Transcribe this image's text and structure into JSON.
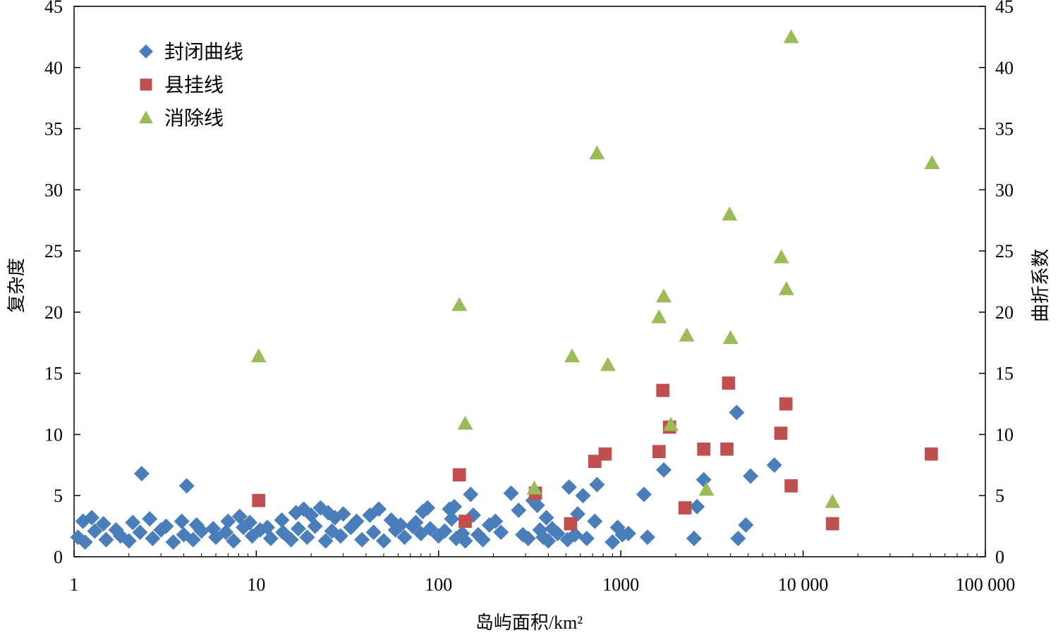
{
  "chart_data": {
    "type": "scatter",
    "xlabel": "岛屿面积/km²",
    "ylabel_left": "复杂度",
    "ylabel_right": "曲折系数",
    "x_scale": "log",
    "xlim": [
      1,
      100000
    ],
    "ylim_left": [
      0,
      45
    ],
    "ylim_right": [
      0,
      45
    ],
    "x_ticks": [
      1,
      10,
      100,
      1000,
      10000,
      100000
    ],
    "x_tick_labels": [
      "1",
      "10",
      "100",
      "1000",
      "10 000",
      "100 000"
    ],
    "y_ticks_left": [
      0,
      5,
      10,
      15,
      20,
      25,
      30,
      35,
      40,
      45
    ],
    "y_tick_labels_left": [
      "0",
      "5",
      "10",
      "15",
      "20",
      "25",
      "30",
      "35",
      "40",
      "45"
    ],
    "y_ticks_right": [
      0,
      5,
      10,
      15,
      20,
      25,
      30,
      35,
      40,
      45
    ],
    "y_tick_labels_right": [
      "0",
      "5",
      "10",
      "15",
      "20",
      "25",
      "30",
      "35",
      "40",
      "45"
    ],
    "grid": false,
    "legend_position": "top-left",
    "series": [
      {
        "name": "封闭曲线",
        "marker": "diamond",
        "color": "#4a7ebb",
        "points": [
          [
            2.35,
            6.8
          ],
          [
            4.15,
            5.8
          ],
          [
            1.12,
            2.9
          ],
          [
            1.25,
            3.2
          ],
          [
            1.45,
            2.7
          ],
          [
            1.7,
            2.2
          ],
          [
            2.1,
            2.8
          ],
          [
            2.6,
            3.1
          ],
          [
            3.2,
            2.5
          ],
          [
            3.9,
            2.9
          ],
          [
            4.7,
            2.6
          ],
          [
            5.8,
            2.3
          ],
          [
            7.0,
            2.9
          ],
          [
            8.1,
            3.3
          ],
          [
            9.2,
            2.8
          ],
          [
            11.5,
            2.4
          ],
          [
            13.8,
            3.0
          ],
          [
            16.5,
            3.6
          ],
          [
            18.2,
            3.9
          ],
          [
            20.0,
            3.4
          ],
          [
            22.5,
            4.0
          ],
          [
            24.8,
            3.6
          ],
          [
            27.0,
            3.2
          ],
          [
            30.0,
            3.5
          ],
          [
            35.5,
            2.9
          ],
          [
            42.0,
            3.4
          ],
          [
            47.0,
            3.9
          ],
          [
            55.0,
            3.0
          ],
          [
            62.0,
            2.6
          ],
          [
            75.0,
            2.8
          ],
          [
            82.0,
            3.7
          ],
          [
            87.0,
            4.0
          ],
          [
            115.0,
            3.9
          ],
          [
            118.0,
            3.1
          ],
          [
            122.0,
            4.1
          ],
          [
            150.0,
            5.1
          ],
          [
            155.0,
            3.4
          ],
          [
            190.0,
            2.6
          ],
          [
            205.0,
            2.9
          ],
          [
            250.0,
            5.2
          ],
          [
            275.0,
            3.8
          ],
          [
            330.0,
            4.6
          ],
          [
            348.0,
            4.2
          ],
          [
            390.0,
            3.2
          ],
          [
            420.0,
            2.3
          ],
          [
            520.0,
            5.7
          ],
          [
            580.0,
            3.5
          ],
          [
            620.0,
            5.0
          ],
          [
            740.0,
            5.9
          ],
          [
            720.0,
            2.9
          ],
          [
            960.0,
            2.4
          ],
          [
            1020.0,
            1.8
          ],
          [
            1340.0,
            5.1
          ],
          [
            1400.0,
            1.6
          ],
          [
            1720.0,
            7.1
          ],
          [
            2520.0,
            1.5
          ],
          [
            2620.0,
            4.1
          ],
          [
            2850.0,
            6.3
          ],
          [
            4320.0,
            11.8
          ],
          [
            4400.0,
            1.5
          ],
          [
            4850.0,
            2.6
          ],
          [
            5150.0,
            6.6
          ],
          [
            6950.0,
            7.5
          ],
          [
            1.05,
            1.6
          ],
          [
            1.15,
            1.2
          ],
          [
            1.3,
            2.1
          ],
          [
            1.5,
            1.4
          ],
          [
            1.8,
            1.7
          ],
          [
            2.0,
            1.3
          ],
          [
            2.3,
            2.0
          ],
          [
            2.7,
            1.5
          ],
          [
            3.0,
            2.2
          ],
          [
            3.5,
            1.2
          ],
          [
            4.0,
            1.8
          ],
          [
            4.5,
            1.4
          ],
          [
            5.0,
            2.1
          ],
          [
            6.0,
            1.6
          ],
          [
            6.8,
            2.0
          ],
          [
            7.5,
            1.3
          ],
          [
            8.5,
            2.4
          ],
          [
            9.5,
            1.7
          ],
          [
            10.5,
            2.2
          ],
          [
            12.0,
            1.5
          ],
          [
            14.0,
            2.0
          ],
          [
            15.5,
            1.4
          ],
          [
            17.0,
            2.3
          ],
          [
            19.0,
            1.6
          ],
          [
            21.0,
            2.5
          ],
          [
            24.0,
            1.3
          ],
          [
            26.0,
            2.1
          ],
          [
            29.0,
            1.7
          ],
          [
            33.0,
            2.4
          ],
          [
            38.0,
            1.4
          ],
          [
            44.0,
            2.0
          ],
          [
            50.0,
            1.3
          ],
          [
            58.0,
            2.2
          ],
          [
            65.0,
            1.6
          ],
          [
            72.0,
            2.5
          ],
          [
            80.0,
            1.9
          ],
          [
            90.0,
            2.3
          ],
          [
            100.0,
            1.7
          ],
          [
            108.0,
            2.1
          ],
          [
            125.0,
            1.5
          ],
          [
            135.0,
            1.9
          ],
          [
            140.0,
            1.3
          ],
          [
            165.0,
            1.8
          ],
          [
            175.0,
            1.4
          ],
          [
            220.0,
            2.0
          ],
          [
            290.0,
            1.8
          ],
          [
            310.0,
            1.5
          ],
          [
            360.0,
            2.2
          ],
          [
            375.0,
            1.6
          ],
          [
            400.0,
            1.3
          ],
          [
            450.0,
            1.9
          ],
          [
            510.0,
            1.4
          ],
          [
            560.0,
            1.8
          ],
          [
            650.0,
            1.5
          ],
          [
            900.0,
            1.2
          ],
          [
            1100.0,
            1.9
          ]
        ]
      },
      {
        "name": "县挂线",
        "marker": "square",
        "color": "#c0504d",
        "points": [
          [
            10.3,
            4.6
          ],
          [
            130.0,
            6.7
          ],
          [
            140.0,
            2.9
          ],
          [
            340.0,
            5.2
          ],
          [
            530.0,
            2.7
          ],
          [
            720.0,
            7.8
          ],
          [
            820.0,
            8.4
          ],
          [
            1620.0,
            8.6
          ],
          [
            1700.0,
            13.6
          ],
          [
            1850.0,
            10.6
          ],
          [
            2250.0,
            4.0
          ],
          [
            2850.0,
            8.8
          ],
          [
            3820.0,
            8.8
          ],
          [
            3900.0,
            14.2
          ],
          [
            7550.0,
            10.1
          ],
          [
            8050.0,
            12.5
          ],
          [
            8600.0,
            5.8
          ],
          [
            14500.0,
            2.7
          ],
          [
            50500.0,
            8.4
          ]
        ]
      },
      {
        "name": "消除线",
        "marker": "triangle",
        "color": "#9bbb59",
        "points": [
          [
            10.3,
            16.4
          ],
          [
            130.0,
            20.6
          ],
          [
            140.0,
            10.9
          ],
          [
            335.0,
            5.6
          ],
          [
            540.0,
            16.4
          ],
          [
            740.0,
            33.0
          ],
          [
            850.0,
            15.7
          ],
          [
            1620.0,
            19.6
          ],
          [
            1720.0,
            21.3
          ],
          [
            1880.0,
            10.8
          ],
          [
            2300.0,
            18.1
          ],
          [
            2950.0,
            5.5
          ],
          [
            3950.0,
            28.0
          ],
          [
            4000.0,
            17.9
          ],
          [
            7600.0,
            24.5
          ],
          [
            8100.0,
            21.9
          ],
          [
            8600.0,
            42.5
          ],
          [
            14500.0,
            4.5
          ],
          [
            51000.0,
            32.2
          ]
        ]
      }
    ]
  }
}
